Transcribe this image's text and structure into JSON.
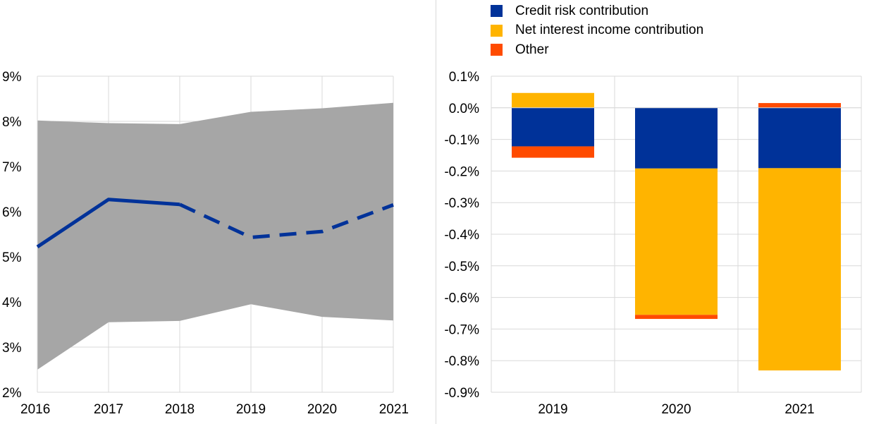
{
  "chart_data": [
    {
      "type": "area",
      "x": [
        "2016",
        "2017",
        "2018",
        "2019",
        "2020",
        "2021"
      ],
      "ylim": [
        2,
        9
      ],
      "y_ticks": [
        "2%",
        "3%",
        "4%",
        "5%",
        "6%",
        "7%",
        "8%",
        "9%"
      ],
      "y_tick_values": [
        2,
        3,
        4,
        5,
        6,
        7,
        8,
        9
      ],
      "grid": true,
      "band": {
        "lower": [
          2.5,
          3.55,
          3.58,
          3.95,
          3.67,
          3.59
        ],
        "upper": [
          8.02,
          7.96,
          7.94,
          8.21,
          8.29,
          8.41
        ],
        "color": "#a6a6a6"
      },
      "series": [
        {
          "values": [
            5.22,
            6.27,
            6.16,
            5.43,
            5.56,
            6.15
          ],
          "color": "#003299",
          "solid_until_index": 2
        }
      ]
    },
    {
      "type": "bar",
      "stacked": true,
      "categories": [
        "2019",
        "2020",
        "2021"
      ],
      "ylim": [
        -0.9,
        0.1
      ],
      "y_ticks": [
        "0.1%",
        "0.0%",
        "-0.1%",
        "-0.2%",
        "-0.3%",
        "-0.4%",
        "-0.5%",
        "-0.6%",
        "-0.7%",
        "-0.8%",
        "-0.9%"
      ],
      "y_tick_values": [
        0.1,
        0.0,
        -0.1,
        -0.2,
        -0.3,
        -0.4,
        -0.5,
        -0.6,
        -0.7,
        -0.8,
        -0.9
      ],
      "grid": true,
      "legend_position": "top",
      "series": [
        {
          "name": "Credit risk contribution",
          "values": [
            -0.122,
            -0.192,
            -0.191
          ],
          "color": "#003299"
        },
        {
          "name": "Net interest income contribution",
          "values": [
            0.047,
            -0.463,
            -0.64
          ],
          "color": "#ffb400"
        },
        {
          "name": "Other",
          "values": [
            -0.036,
            -0.013,
            0.015
          ],
          "color": "#ff4b00"
        }
      ]
    }
  ]
}
